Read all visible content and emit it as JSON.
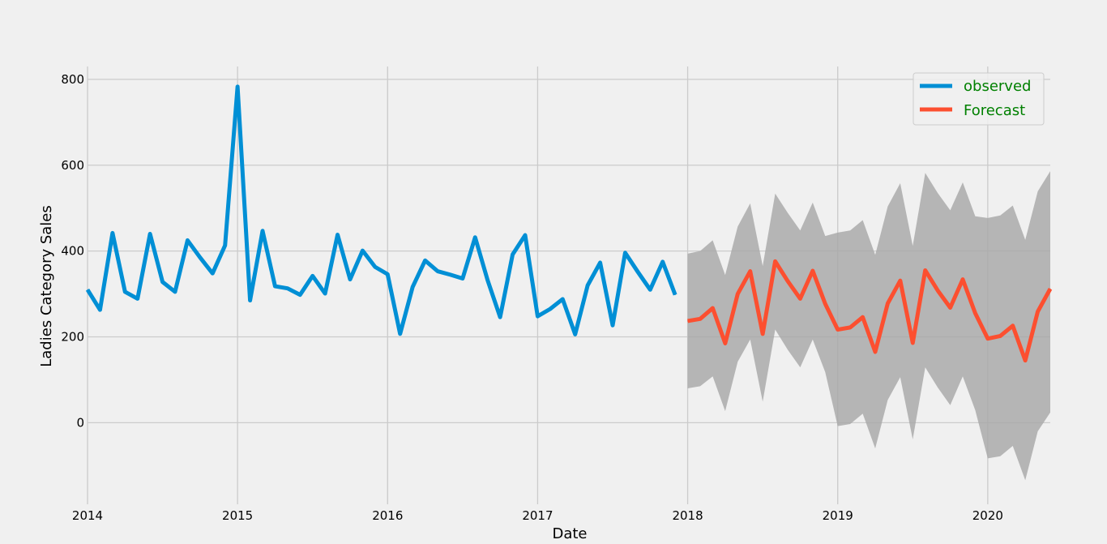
{
  "chart_data": {
    "type": "line",
    "xlabel": "Date",
    "ylabel": "Ladies Category Sales",
    "xlim": [
      "2014-01",
      "2020-06"
    ],
    "ylim": [
      -190,
      830
    ],
    "x_ticks": [
      "2014",
      "2015",
      "2016",
      "2017",
      "2018",
      "2019",
      "2020"
    ],
    "y_ticks": [
      0,
      200,
      400,
      600,
      800
    ],
    "grid": true,
    "legend_position": "top-right",
    "colors": {
      "observed": "#008fd5",
      "forecast": "#fc4f30",
      "confidence_band": "#a6a6a6",
      "legend_text": "#008000"
    },
    "series": [
      {
        "name": "observed",
        "x": [
          "2014-01",
          "2014-02",
          "2014-03",
          "2014-04",
          "2014-05",
          "2014-06",
          "2014-07",
          "2014-08",
          "2014-09",
          "2014-10",
          "2014-11",
          "2014-12",
          "2015-01",
          "2015-02",
          "2015-03",
          "2015-04",
          "2015-05",
          "2015-06",
          "2015-07",
          "2015-08",
          "2015-09",
          "2015-10",
          "2015-11",
          "2015-12",
          "2016-01",
          "2016-02",
          "2016-03",
          "2016-04",
          "2016-05",
          "2016-06",
          "2016-07",
          "2016-08",
          "2016-09",
          "2016-10",
          "2016-11",
          "2016-12",
          "2017-01",
          "2017-02",
          "2017-03",
          "2017-04",
          "2017-05",
          "2017-06",
          "2017-07",
          "2017-08",
          "2017-09",
          "2017-10",
          "2017-11",
          "2017-12"
        ],
        "values": [
          310,
          263,
          442,
          305,
          289,
          440,
          328,
          305,
          425,
          385,
          348,
          413,
          783,
          285,
          447,
          318,
          313,
          298,
          342,
          301,
          438,
          334,
          401,
          363,
          346,
          207,
          316,
          378,
          353,
          345,
          336,
          432,
          332,
          246,
          392,
          437,
          248,
          265,
          288,
          206,
          320,
          373,
          227,
          396,
          352,
          310,
          375,
          298
        ]
      },
      {
        "name": "Forecast",
        "x": [
          "2018-01",
          "2018-02",
          "2018-03",
          "2018-04",
          "2018-05",
          "2018-06",
          "2018-07",
          "2018-08",
          "2018-09",
          "2018-10",
          "2018-11",
          "2018-12",
          "2019-01",
          "2019-02",
          "2019-03",
          "2019-04",
          "2019-05",
          "2019-06",
          "2019-07",
          "2019-08",
          "2019-09",
          "2019-10",
          "2019-11",
          "2019-12",
          "2020-01",
          "2020-02",
          "2020-03",
          "2020-04",
          "2020-05",
          "2020-06"
        ],
        "values": [
          237,
          242,
          267,
          185,
          300,
          353,
          207,
          376,
          330,
          289,
          354,
          277,
          217,
          222,
          246,
          165,
          278,
          331,
          186,
          355,
          308,
          268,
          334,
          255,
          196,
          202,
          226,
          145,
          259,
          312
        ],
        "lower": [
          80,
          85,
          108,
          27,
          142,
          194,
          49,
          217,
          170,
          129,
          194,
          118,
          -8,
          -3,
          21,
          -60,
          53,
          106,
          -39,
          129,
          82,
          41,
          108,
          29,
          -83,
          -78,
          -54,
          -134,
          -20,
          24
        ],
        "upper": [
          394,
          400,
          425,
          344,
          457,
          511,
          365,
          534,
          489,
          448,
          513,
          435,
          443,
          448,
          472,
          391,
          504,
          558,
          412,
          582,
          535,
          495,
          560,
          481,
          477,
          483,
          506,
          426,
          539,
          586
        ]
      }
    ]
  }
}
